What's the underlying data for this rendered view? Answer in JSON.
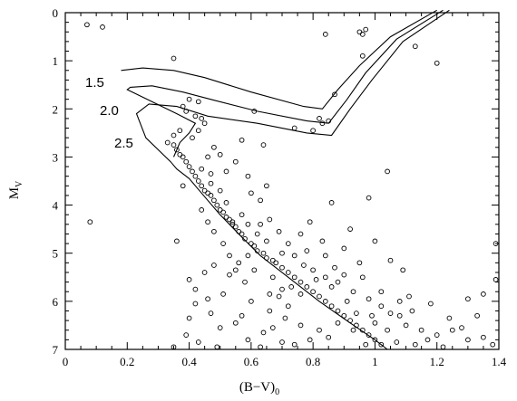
{
  "chart_data": {
    "type": "scatter",
    "title": "",
    "xlabel": "(B−V)",
    "xlabel_sub": "0",
    "ylabel": "M",
    "ylabel_sub": "V",
    "xlim": [
      0,
      1.4
    ],
    "ylim": [
      7,
      0
    ],
    "y_inverted": true,
    "xticks": [
      "0",
      "0.2",
      "0.4",
      "0.6",
      "0.8",
      "1",
      "1.2",
      "1.4"
    ],
    "yticks": [
      "0",
      "1",
      "2",
      "3",
      "4",
      "5",
      "6",
      "7"
    ],
    "grid": false,
    "marker": "open-circle",
    "isochrones": [
      {
        "label": "1.5",
        "points": [
          [
            1.2,
            -0.05
          ],
          [
            1.05,
            0.5
          ],
          [
            0.95,
            1.1
          ],
          [
            0.88,
            1.6
          ],
          [
            0.83,
            2.0
          ],
          [
            0.77,
            1.95
          ],
          [
            0.6,
            1.65
          ],
          [
            0.45,
            1.35
          ],
          [
            0.35,
            1.2
          ],
          [
            0.25,
            1.15
          ],
          [
            0.18,
            1.2
          ]
        ]
      },
      {
        "label": "2.0",
        "points": [
          [
            1.22,
            -0.05
          ],
          [
            1.07,
            0.55
          ],
          [
            0.97,
            1.25
          ],
          [
            0.91,
            1.8
          ],
          [
            0.85,
            2.3
          ],
          [
            0.78,
            2.25
          ],
          [
            0.62,
            2.05
          ],
          [
            0.48,
            1.82
          ],
          [
            0.38,
            1.65
          ],
          [
            0.28,
            1.52
          ],
          [
            0.21,
            1.55
          ],
          [
            0.2,
            1.6
          ],
          [
            0.36,
            2.1
          ],
          [
            0.42,
            2.3
          ],
          [
            0.4,
            2.5
          ],
          [
            0.37,
            2.7
          ],
          [
            0.35,
            3.0
          ]
        ]
      },
      {
        "label": "2.5",
        "points": [
          [
            1.24,
            -0.05
          ],
          [
            1.09,
            0.6
          ],
          [
            0.99,
            1.4
          ],
          [
            0.92,
            2.0
          ],
          [
            0.86,
            2.55
          ],
          [
            0.78,
            2.5
          ],
          [
            0.62,
            2.3
          ],
          [
            0.46,
            2.15
          ],
          [
            0.36,
            1.95
          ],
          [
            0.27,
            1.9
          ],
          [
            0.23,
            2.1
          ],
          [
            0.26,
            2.6
          ],
          [
            0.34,
            3.1
          ],
          [
            0.36,
            3.25
          ],
          [
            0.4,
            3.45
          ],
          [
            0.44,
            3.75
          ],
          [
            0.5,
            4.2
          ],
          [
            0.56,
            4.6
          ],
          [
            0.63,
            5.05
          ],
          [
            0.72,
            5.5
          ],
          [
            0.82,
            6.0
          ],
          [
            0.92,
            6.45
          ],
          [
            1.0,
            6.8
          ],
          [
            1.04,
            7.0
          ]
        ]
      }
    ],
    "points": [
      [
        0.07,
        0.25
      ],
      [
        0.12,
        0.3
      ],
      [
        0.35,
        0.95
      ],
      [
        0.08,
        4.35
      ],
      [
        0.36,
        4.75
      ],
      [
        0.84,
        0.45
      ],
      [
        0.95,
        0.4
      ],
      [
        0.96,
        0.45
      ],
      [
        0.97,
        0.35
      ],
      [
        0.96,
        0.9
      ],
      [
        1.2,
        1.05
      ],
      [
        1.13,
        0.7
      ],
      [
        0.87,
        1.7
      ],
      [
        0.82,
        2.2
      ],
      [
        0.85,
        2.25
      ],
      [
        0.83,
        2.3
      ],
      [
        0.74,
        2.4
      ],
      [
        0.61,
        2.05
      ],
      [
        0.64,
        2.75
      ],
      [
        0.8,
        2.45
      ],
      [
        0.5,
        2.95
      ],
      [
        0.55,
        3.1
      ],
      [
        0.52,
        3.3
      ],
      [
        0.47,
        3.35
      ],
      [
        0.47,
        3.55
      ],
      [
        0.4,
        1.8
      ],
      [
        0.43,
        1.85
      ],
      [
        0.38,
        1.95
      ],
      [
        0.39,
        2.05
      ],
      [
        0.42,
        2.15
      ],
      [
        0.44,
        2.2
      ],
      [
        0.37,
        2.45
      ],
      [
        0.35,
        2.55
      ],
      [
        0.33,
        2.7
      ],
      [
        0.35,
        2.75
      ],
      [
        0.36,
        2.85
      ],
      [
        0.37,
        2.95
      ],
      [
        0.38,
        3.0
      ],
      [
        0.39,
        3.1
      ],
      [
        0.4,
        3.2
      ],
      [
        0.41,
        3.3
      ],
      [
        0.42,
        3.4
      ],
      [
        0.43,
        3.5
      ],
      [
        0.44,
        3.6
      ],
      [
        0.45,
        3.7
      ],
      [
        0.46,
        3.75
      ],
      [
        0.47,
        3.8
      ],
      [
        0.48,
        3.9
      ],
      [
        0.49,
        4.0
      ],
      [
        0.5,
        4.1
      ],
      [
        0.51,
        4.15
      ],
      [
        0.52,
        4.25
      ],
      [
        0.53,
        4.3
      ],
      [
        0.54,
        4.4
      ],
      [
        0.55,
        4.45
      ],
      [
        0.56,
        4.55
      ],
      [
        0.57,
        4.6
      ],
      [
        0.58,
        4.7
      ],
      [
        0.6,
        4.8
      ],
      [
        0.61,
        4.85
      ],
      [
        0.62,
        4.95
      ],
      [
        0.64,
        5.0
      ],
      [
        0.65,
        5.1
      ],
      [
        0.67,
        5.15
      ],
      [
        0.68,
        5.2
      ],
      [
        0.7,
        5.3
      ],
      [
        0.72,
        5.4
      ],
      [
        0.74,
        5.5
      ],
      [
        0.76,
        5.6
      ],
      [
        0.78,
        5.7
      ],
      [
        0.8,
        5.8
      ],
      [
        0.82,
        5.9
      ],
      [
        0.84,
        6.0
      ],
      [
        0.86,
        6.1
      ],
      [
        0.88,
        6.2
      ],
      [
        0.9,
        6.3
      ],
      [
        0.92,
        6.4
      ],
      [
        0.94,
        6.5
      ],
      [
        0.96,
        6.6
      ],
      [
        0.98,
        6.7
      ],
      [
        1.0,
        6.8
      ],
      [
        1.02,
        6.9
      ],
      [
        0.5,
        3.7
      ],
      [
        0.52,
        3.95
      ],
      [
        0.54,
        4.35
      ],
      [
        0.57,
        4.2
      ],
      [
        0.59,
        4.4
      ],
      [
        0.62,
        4.6
      ],
      [
        0.65,
        4.75
      ],
      [
        0.63,
        4.4
      ],
      [
        0.66,
        4.3
      ],
      [
        0.69,
        4.55
      ],
      [
        0.72,
        4.8
      ],
      [
        0.74,
        5.05
      ],
      [
        0.7,
        5.0
      ],
      [
        0.77,
        5.25
      ],
      [
        0.8,
        5.35
      ],
      [
        0.84,
        5.5
      ],
      [
        0.88,
        5.6
      ],
      [
        0.93,
        5.8
      ],
      [
        0.96,
        5.5
      ],
      [
        0.98,
        5.95
      ],
      [
        1.02,
        6.1
      ],
      [
        1.05,
        6.25
      ],
      [
        1.08,
        6.3
      ],
      [
        1.12,
        6.2
      ],
      [
        1.1,
        6.5
      ],
      [
        1.15,
        6.6
      ],
      [
        1.2,
        6.7
      ],
      [
        1.25,
        6.6
      ],
      [
        1.3,
        6.8
      ],
      [
        1.35,
        6.75
      ],
      [
        1.38,
        6.9
      ],
      [
        1.39,
        5.55
      ],
      [
        1.39,
        4.8
      ],
      [
        1.35,
        5.85
      ],
      [
        0.92,
        4.5
      ],
      [
        1.0,
        4.75
      ],
      [
        1.05,
        5.15
      ],
      [
        1.04,
        3.3
      ],
      [
        1.09,
        5.35
      ],
      [
        0.98,
        3.85
      ],
      [
        0.86,
        3.95
      ],
      [
        0.79,
        4.35
      ],
      [
        0.76,
        4.6
      ],
      [
        0.83,
        4.75
      ],
      [
        0.59,
        3.4
      ],
      [
        0.6,
        3.75
      ],
      [
        0.63,
        3.9
      ],
      [
        0.65,
        3.6
      ],
      [
        0.9,
        4.9
      ],
      [
        0.95,
        5.2
      ],
      [
        0.87,
        5.3
      ],
      [
        0.84,
        5.05
      ],
      [
        0.78,
        4.95
      ],
      [
        0.73,
        5.7
      ],
      [
        0.69,
        5.9
      ],
      [
        0.66,
        6.2
      ],
      [
        0.71,
        6.35
      ],
      [
        0.76,
        6.5
      ],
      [
        0.82,
        6.6
      ],
      [
        0.85,
        6.75
      ],
      [
        0.7,
        6.85
      ],
      [
        0.64,
        6.65
      ],
      [
        0.59,
        6.8
      ],
      [
        0.55,
        6.45
      ],
      [
        0.5,
        6.55
      ],
      [
        0.47,
        6.25
      ],
      [
        0.42,
        6.05
      ],
      [
        0.4,
        6.35
      ],
      [
        0.43,
        6.85
      ],
      [
        0.49,
        6.95
      ],
      [
        0.35,
        6.95
      ],
      [
        0.39,
        6.7
      ],
      [
        0.45,
        5.4
      ],
      [
        0.4,
        5.55
      ],
      [
        0.42,
        5.75
      ],
      [
        0.46,
        5.95
      ],
      [
        0.51,
        5.85
      ],
      [
        0.53,
        5.45
      ],
      [
        0.48,
        5.25
      ],
      [
        0.55,
        5.35
      ],
      [
        0.58,
        5.6
      ],
      [
        0.61,
        5.35
      ],
      [
        0.6,
        6.0
      ],
      [
        0.57,
        6.3
      ],
      [
        0.63,
        6.95
      ],
      [
        0.67,
        6.55
      ],
      [
        0.74,
        6.9
      ],
      [
        0.79,
        6.8
      ],
      [
        0.88,
        6.45
      ],
      [
        0.93,
        6.6
      ],
      [
        0.97,
        6.9
      ],
      [
        1.0,
        6.45
      ],
      [
        1.04,
        6.6
      ],
      [
        1.07,
        6.85
      ],
      [
        1.13,
        6.9
      ],
      [
        1.17,
        6.8
      ],
      [
        1.22,
        6.95
      ],
      [
        1.28,
        6.55
      ],
      [
        1.33,
        6.3
      ],
      [
        1.18,
        6.05
      ],
      [
        1.11,
        5.9
      ],
      [
        1.24,
        6.35
      ],
      [
        1.3,
        5.95
      ],
      [
        1.02,
        5.8
      ],
      [
        1.08,
        6.0
      ],
      [
        0.91,
        6.0
      ],
      [
        0.94,
        6.25
      ],
      [
        0.99,
        6.3
      ],
      [
        0.86,
        5.7
      ],
      [
        0.81,
        5.55
      ],
      [
        0.9,
        5.45
      ],
      [
        0.67,
        5.5
      ],
      [
        0.7,
        5.75
      ],
      [
        0.76,
        5.85
      ],
      [
        0.72,
        6.1
      ],
      [
        0.66,
        5.85
      ],
      [
        0.38,
        3.6
      ],
      [
        0.44,
        4.1
      ],
      [
        0.46,
        4.35
      ],
      [
        0.48,
        4.55
      ],
      [
        0.51,
        4.8
      ],
      [
        0.53,
        5.05
      ],
      [
        0.56,
        5.2
      ],
      [
        0.59,
        5.05
      ],
      [
        0.44,
        3.25
      ],
      [
        0.46,
        3.0
      ],
      [
        0.48,
        2.8
      ],
      [
        0.57,
        2.65
      ],
      [
        0.43,
        2.45
      ],
      [
        0.41,
        2.6
      ],
      [
        0.45,
        2.3
      ]
    ]
  },
  "labels": {
    "iso_1": "1.5",
    "iso_2": "2.0",
    "iso_3": "2.5"
  }
}
